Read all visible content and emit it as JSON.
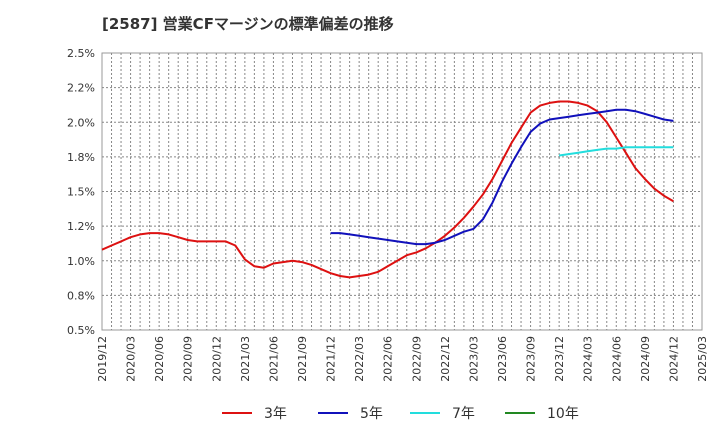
{
  "chart_data": {
    "type": "line",
    "title": "[2587]  営業CFマージンの標準偏差の推移",
    "xlabel": "",
    "ylabel": "",
    "ylim": [
      0.5,
      2.5
    ],
    "y_ticks": [
      "0.5%",
      "0.8%",
      "1.0%",
      "1.2%",
      "1.5%",
      "1.8%",
      "2.0%",
      "2.2%",
      "2.5%"
    ],
    "x_ticks": [
      "2019/12",
      "2020/03",
      "2020/06",
      "2020/09",
      "2020/12",
      "2021/03",
      "2021/06",
      "2021/09",
      "2021/12",
      "2022/03",
      "2022/06",
      "2022/09",
      "2022/12",
      "2023/03",
      "2023/06",
      "2023/09",
      "2023/12",
      "2024/03",
      "2024/06",
      "2024/09",
      "2024/12",
      "2025/03"
    ],
    "grid": true,
    "legend": "bottom",
    "series": [
      {
        "name": "3年",
        "color": "#dd1111",
        "x": [
          "2019/12",
          "2020/01",
          "2020/02",
          "2020/03",
          "2020/04",
          "2020/05",
          "2020/06",
          "2020/07",
          "2020/08",
          "2020/09",
          "2020/10",
          "2020/11",
          "2020/12",
          "2021/01",
          "2021/02",
          "2021/03",
          "2021/04",
          "2021/05",
          "2021/06",
          "2021/07",
          "2021/08",
          "2021/09",
          "2021/10",
          "2021/11",
          "2021/12",
          "2022/01",
          "2022/02",
          "2022/03",
          "2022/04",
          "2022/05",
          "2022/06",
          "2022/07",
          "2022/08",
          "2022/09",
          "2022/10",
          "2022/11",
          "2022/12",
          "2023/01",
          "2023/02",
          "2023/03",
          "2023/04",
          "2023/05",
          "2023/06",
          "2023/07",
          "2023/08",
          "2023/09",
          "2023/10",
          "2023/11",
          "2023/12",
          "2024/01",
          "2024/02",
          "2024/03",
          "2024/04",
          "2024/05",
          "2024/06",
          "2024/07",
          "2024/08",
          "2024/09",
          "2024/10",
          "2024/11",
          "2024/12"
        ],
        "values": [
          1.08,
          1.11,
          1.14,
          1.17,
          1.19,
          1.2,
          1.2,
          1.19,
          1.17,
          1.15,
          1.14,
          1.14,
          1.14,
          1.14,
          1.11,
          1.01,
          0.96,
          0.95,
          0.98,
          0.99,
          1.0,
          0.99,
          0.97,
          0.94,
          0.91,
          0.89,
          0.88,
          0.89,
          0.9,
          0.92,
          0.96,
          1.0,
          1.04,
          1.06,
          1.09,
          1.13,
          1.18,
          1.24,
          1.31,
          1.39,
          1.48,
          1.59,
          1.72,
          1.85,
          1.96,
          2.07,
          2.12,
          2.14,
          2.15,
          2.15,
          2.14,
          2.12,
          2.08,
          2.0,
          1.89,
          1.78,
          1.67,
          1.59,
          1.52,
          1.47,
          1.43
        ]
      },
      {
        "name": "5年",
        "color": "#1111bb",
        "x": [
          "2021/12",
          "2022/01",
          "2022/02",
          "2022/03",
          "2022/04",
          "2022/05",
          "2022/06",
          "2022/07",
          "2022/08",
          "2022/09",
          "2022/10",
          "2022/11",
          "2022/12",
          "2023/01",
          "2023/02",
          "2023/03",
          "2023/04",
          "2023/05",
          "2023/06",
          "2023/07",
          "2023/08",
          "2023/09",
          "2023/10",
          "2023/11",
          "2023/12",
          "2024/01",
          "2024/02",
          "2024/03",
          "2024/04",
          "2024/05",
          "2024/06",
          "2024/07",
          "2024/08",
          "2024/09",
          "2024/10",
          "2024/11",
          "2024/12"
        ],
        "values": [
          1.2,
          1.2,
          1.19,
          1.18,
          1.17,
          1.16,
          1.15,
          1.14,
          1.13,
          1.12,
          1.12,
          1.13,
          1.15,
          1.18,
          1.21,
          1.23,
          1.3,
          1.42,
          1.57,
          1.7,
          1.82,
          1.93,
          1.99,
          2.02,
          2.03,
          2.04,
          2.05,
          2.06,
          2.07,
          2.08,
          2.09,
          2.09,
          2.08,
          2.06,
          2.04,
          2.02,
          2.01
        ]
      },
      {
        "name": "7年",
        "color": "#22dddd",
        "x": [
          "2023/12",
          "2024/01",
          "2024/02",
          "2024/03",
          "2024/04",
          "2024/05",
          "2024/06",
          "2024/07",
          "2024/08",
          "2024/09",
          "2024/10",
          "2024/11",
          "2024/12"
        ],
        "values": [
          1.76,
          1.77,
          1.78,
          1.79,
          1.8,
          1.81,
          1.81,
          1.82,
          1.82,
          1.82,
          1.82,
          1.82,
          1.82
        ]
      },
      {
        "name": "10年",
        "color": "#228822",
        "x": [],
        "values": []
      }
    ]
  }
}
